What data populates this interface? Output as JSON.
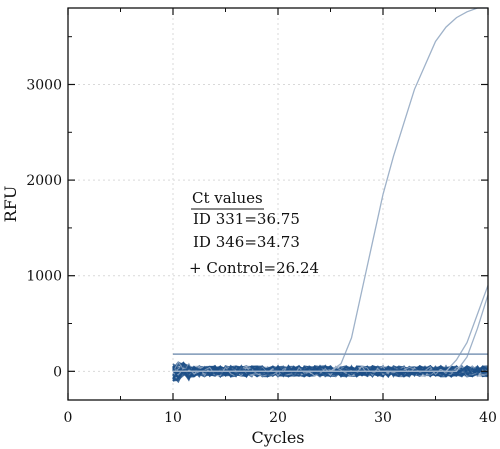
{
  "chart_data": {
    "type": "line",
    "title": "",
    "xlabel": "Cycles",
    "ylabel": "RFU",
    "xlim": [
      0,
      40
    ],
    "ylim": [
      -300,
      3800
    ],
    "xticks": [
      0,
      10,
      20,
      30,
      40
    ],
    "yticks": [
      0,
      1000,
      2000,
      3000
    ],
    "grid": true,
    "threshold": 180,
    "colors": {
      "trace_dark": "#1d4f87",
      "trace_light": "#9fb2c9",
      "threshold": "#7d97b6",
      "grid": "#d9d9d9"
    },
    "x": [
      10,
      11,
      12,
      13,
      14,
      15,
      16,
      17,
      18,
      19,
      20,
      21,
      22,
      23,
      24,
      25,
      26,
      27,
      28,
      29,
      30,
      31,
      32,
      33,
      34,
      35,
      36,
      37,
      38,
      39,
      40
    ],
    "series": [
      {
        "values": [
          0,
          0,
          0,
          0,
          0,
          0,
          0,
          0,
          0,
          0,
          0,
          0,
          0,
          0,
          0,
          0,
          80,
          350,
          850,
          1350,
          1850,
          2250,
          2600,
          2950,
          3200,
          3450,
          3600,
          3700,
          3760,
          3800,
          3800
        ]
      },
      {
        "values": [
          0,
          0,
          0,
          0,
          0,
          0,
          0,
          0,
          0,
          0,
          0,
          0,
          0,
          0,
          0,
          0,
          0,
          0,
          0,
          0,
          0,
          0,
          0,
          0,
          0,
          0,
          0,
          120,
          300,
          600,
          900
        ]
      },
      {
        "values": [
          0,
          0,
          0,
          0,
          0,
          0,
          0,
          0,
          0,
          0,
          0,
          0,
          0,
          0,
          0,
          0,
          0,
          0,
          0,
          0,
          0,
          0,
          0,
          0,
          0,
          0,
          0,
          0,
          150,
          450,
          800
        ]
      }
    ],
    "annotations": {
      "heading": "Ct values",
      "line_1": "ID 331=36.75",
      "line_2": "ID 346=34.73",
      "line_3": "+ Control=26.24"
    }
  }
}
